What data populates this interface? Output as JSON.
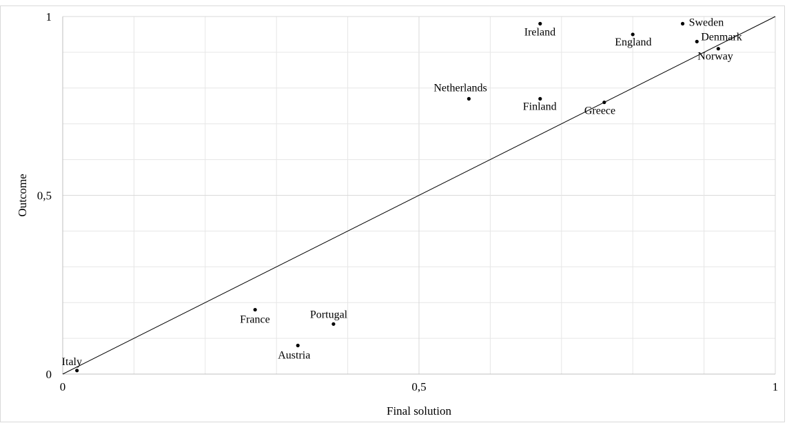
{
  "chart_data": {
    "type": "scatter",
    "title": "",
    "xlabel": "Final solution",
    "ylabel": "Outcome",
    "xlim": [
      0,
      1
    ],
    "ylim": [
      0,
      1
    ],
    "xticks": [
      0,
      0.5,
      1
    ],
    "yticks": [
      0,
      0.5,
      1
    ],
    "xtick_labels": [
      "0",
      "0,5",
      "1"
    ],
    "ytick_labels": [
      "0",
      "0,5",
      "1"
    ],
    "grid": true,
    "diagonal_line": true,
    "colors": {
      "point": "#000000",
      "line": "#000000",
      "grid": "#e6e6e6"
    },
    "points": [
      {
        "label": "Italy",
        "x": 0.02,
        "y": 0.01
      },
      {
        "label": "France",
        "x": 0.27,
        "y": 0.18
      },
      {
        "label": "Austria",
        "x": 0.33,
        "y": 0.08
      },
      {
        "label": "Portugal",
        "x": 0.38,
        "y": 0.14
      },
      {
        "label": "Netherlands",
        "x": 0.57,
        "y": 0.77
      },
      {
        "label": "Finland",
        "x": 0.67,
        "y": 0.77
      },
      {
        "label": "Ireland",
        "x": 0.67,
        "y": 0.98
      },
      {
        "label": "Greece",
        "x": 0.76,
        "y": 0.76
      },
      {
        "label": "England",
        "x": 0.8,
        "y": 0.95
      },
      {
        "label": "Sweden",
        "x": 0.87,
        "y": 0.98
      },
      {
        "label": "Denmark",
        "x": 0.89,
        "y": 0.93
      },
      {
        "label": "Norway",
        "x": 0.92,
        "y": 0.91
      }
    ]
  }
}
